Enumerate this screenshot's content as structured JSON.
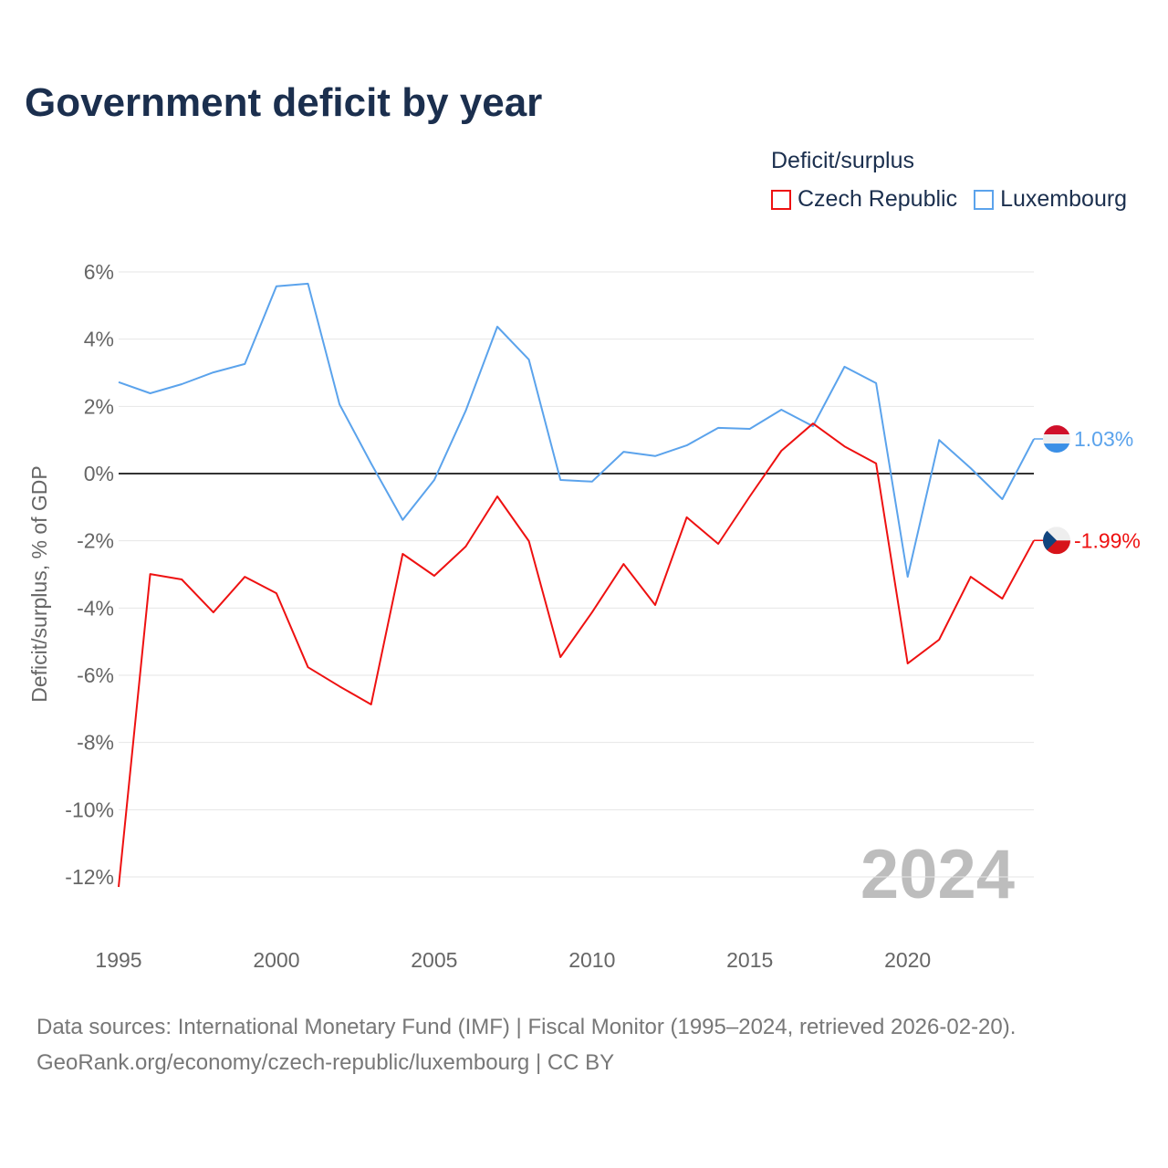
{
  "chart_data": {
    "type": "line",
    "title": "Government deficit by year",
    "xlabel": "",
    "ylabel": "Deficit/surplus, % of GDP",
    "xlim": [
      1995,
      2024
    ],
    "ylim": [
      -12,
      6
    ],
    "x_ticks": [
      1995,
      2000,
      2005,
      2010,
      2015,
      2020
    ],
    "x_tick_labels": [
      "1995",
      "2000",
      "2005",
      "2010",
      "2015",
      "2020"
    ],
    "y_ticks": [
      6,
      4,
      2,
      0,
      -2,
      -4,
      -6,
      -8,
      -10,
      -12
    ],
    "y_tick_labels": [
      "6%",
      "4%",
      "2%",
      "0%",
      "-2%",
      "-4%",
      "-6%",
      "-8%",
      "-10%",
      "-12%"
    ],
    "grid": true,
    "legend_title": "Deficit/surplus",
    "legend_position": "top-right",
    "year_watermark": "2024",
    "x": [
      1995,
      1996,
      1997,
      1998,
      1999,
      2000,
      2001,
      2002,
      2003,
      2004,
      2005,
      2006,
      2007,
      2008,
      2009,
      2010,
      2011,
      2012,
      2013,
      2014,
      2015,
      2016,
      2017,
      2018,
      2019,
      2020,
      2021,
      2022,
      2023,
      2024
    ],
    "series": [
      {
        "name": "Czech Republic",
        "color": "#ee1111",
        "end_label": "-1.99%",
        "values": [
          -12.3,
          -2.99,
          -3.15,
          -4.13,
          -3.07,
          -3.56,
          -5.76,
          -6.33,
          -6.87,
          -2.39,
          -3.04,
          -2.17,
          -0.68,
          -2.01,
          -5.46,
          -4.13,
          -2.69,
          -3.91,
          -1.3,
          -2.09,
          -0.68,
          0.68,
          1.49,
          0.81,
          0.3,
          -5.65,
          -4.94,
          -3.07,
          -3.72,
          -1.99
        ]
      },
      {
        "name": "Luxembourg",
        "color": "#5ba3ec",
        "end_label": "1.03%",
        "values": [
          2.72,
          2.39,
          2.66,
          3.01,
          3.26,
          5.57,
          5.65,
          2.06,
          0.3,
          -1.38,
          -0.19,
          1.87,
          4.37,
          3.39,
          -0.19,
          -0.24,
          0.65,
          0.52,
          0.84,
          1.36,
          1.33,
          1.9,
          1.41,
          3.18,
          2.69,
          -3.07,
          1.0,
          0.16,
          -0.76,
          1.03
        ]
      }
    ]
  },
  "footer": {
    "line1": "Data sources: International Monetary Fund (IMF) | Fiscal Monitor (1995–2024, retrieved 2026-02-20).",
    "line2": "GeoRank.org/economy/czech-republic/luxembourg | CC BY"
  }
}
